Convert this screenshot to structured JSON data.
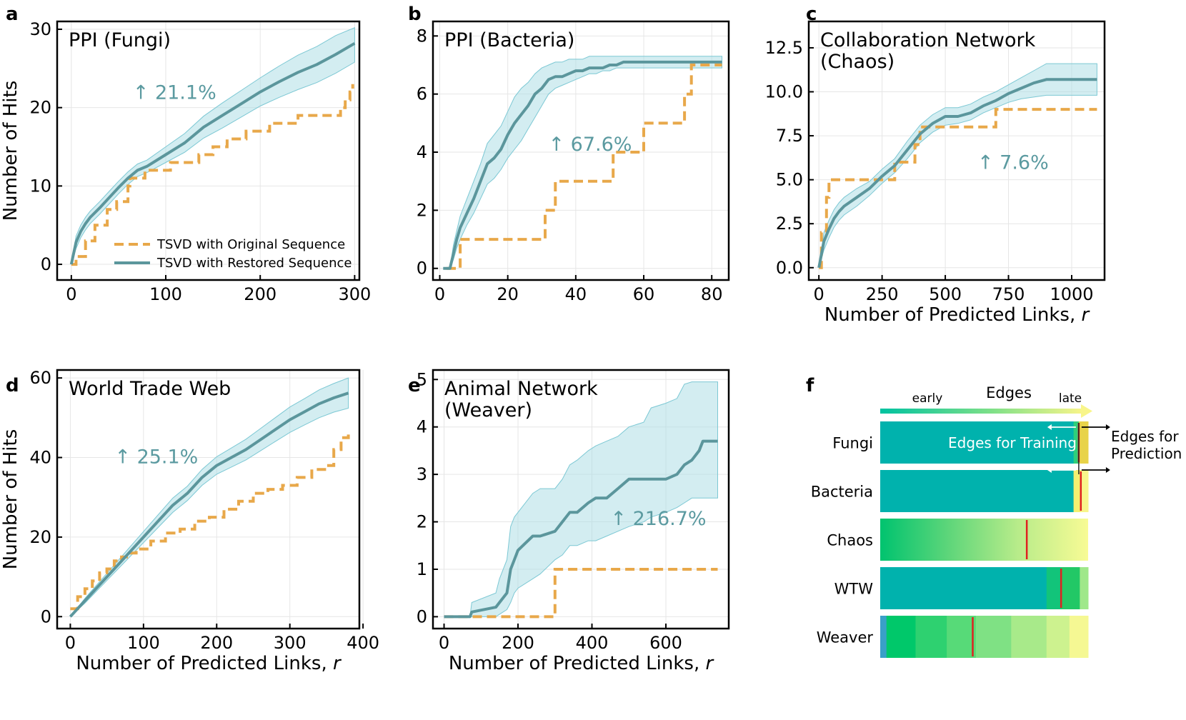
{
  "colors": {
    "restored": "#5b969c",
    "band": "#a8dce4",
    "original": "#e8a84a",
    "grid": "#e6e6e6",
    "teal_block": "#00b2ad",
    "red_marker": "#e02020",
    "yellow": "#f8f58a"
  },
  "legend": {
    "original": "TSVD with Original Sequence",
    "restored": "TSVD with Restored Sequence"
  },
  "chart_data": [
    {
      "type": "line",
      "panel": "a",
      "title": "PPI (Fungi)",
      "annotation": "↑ 21.1%",
      "xlabel": "",
      "ylabel": "Number of Hits",
      "xlim": [
        -15,
        305
      ],
      "ylim": [
        -2,
        31
      ],
      "xticks": [
        0,
        100,
        200,
        300
      ],
      "yticks": [
        0,
        10,
        20,
        30
      ],
      "ytick_labels": [
        "0",
        "10",
        "20",
        "30"
      ],
      "legend": true,
      "series": [
        {
          "name": "TSVD with Original Sequence",
          "style": "dashed-step",
          "x": [
            0,
            5,
            15,
            25,
            38,
            48,
            60,
            62,
            78,
            105,
            135,
            150,
            165,
            185,
            195,
            210,
            215,
            240,
            260,
            285,
            290,
            295,
            298
          ],
          "y": [
            0,
            1,
            3,
            5,
            7,
            8,
            10,
            11,
            12,
            13,
            14,
            15,
            16,
            17,
            17,
            18,
            18,
            19,
            19,
            20,
            21,
            22,
            23
          ]
        },
        {
          "name": "TSVD with Restored Sequence",
          "style": "solid",
          "x": [
            0,
            5,
            10,
            15,
            20,
            30,
            40,
            50,
            60,
            70,
            80,
            100,
            120,
            140,
            160,
            180,
            200,
            220,
            240,
            260,
            280,
            300
          ],
          "y": [
            0,
            2.8,
            4.2,
            5.2,
            6.0,
            7.2,
            8.5,
            9.8,
            11,
            12,
            12.5,
            14,
            15.5,
            17.5,
            19,
            20.5,
            22,
            23.3,
            24.5,
            25.5,
            26.8,
            28.2
          ],
          "band_lower": [
            0,
            2.0,
            3.4,
            4.4,
            5.2,
            6.4,
            7.7,
            9.0,
            10.2,
            11.2,
            11.7,
            13.0,
            14.3,
            16.1,
            17.4,
            18.8,
            20.2,
            21.3,
            22.3,
            23.2,
            24.4,
            25.8
          ],
          "band_upper": [
            0,
            3.6,
            5.0,
            6.0,
            6.8,
            8.0,
            9.3,
            10.6,
            11.8,
            12.8,
            13.3,
            15.0,
            16.7,
            18.9,
            20.6,
            22.2,
            23.8,
            25.3,
            26.7,
            27.8,
            29.2,
            30.2
          ]
        }
      ]
    },
    {
      "type": "line",
      "panel": "b",
      "title": "PPI (Bacteria)",
      "annotation": "↑ 67.6%",
      "xlabel": "",
      "ylabel": "",
      "xlim": [
        -2,
        85
      ],
      "ylim": [
        -0.4,
        8.5
      ],
      "xticks": [
        0,
        20,
        40,
        60,
        80
      ],
      "yticks": [
        0,
        2,
        4,
        6,
        8
      ],
      "ytick_labels": [
        "0",
        "2",
        "4",
        "6",
        "8"
      ],
      "legend": false,
      "series": [
        {
          "name": "TSVD with Original Sequence",
          "style": "dashed-step",
          "x": [
            2,
            6,
            28,
            31,
            34,
            48,
            51,
            56,
            60,
            72,
            74,
            83
          ],
          "y": [
            0,
            1,
            1,
            2,
            3,
            3,
            4,
            4,
            5,
            6,
            7,
            7
          ],
          "step": true
        },
        {
          "name": "TSVD with Restored Sequence",
          "style": "solid",
          "x": [
            1,
            3,
            4,
            5,
            6,
            8,
            10,
            12,
            14,
            16,
            18,
            20,
            22,
            24,
            26,
            28,
            30,
            32,
            34,
            36,
            38,
            40,
            42,
            44,
            46,
            48,
            50,
            52,
            54,
            56,
            60,
            65,
            70,
            75,
            80,
            83
          ],
          "y": [
            0,
            0,
            0.5,
            1.0,
            1.4,
            1.9,
            2.4,
            3.0,
            3.6,
            3.8,
            4.1,
            4.6,
            5.0,
            5.3,
            5.6,
            6.0,
            6.2,
            6.5,
            6.6,
            6.6,
            6.7,
            6.8,
            6.8,
            6.9,
            6.9,
            6.9,
            7.0,
            7.0,
            7.1,
            7.1,
            7.1,
            7.1,
            7.1,
            7.1,
            7.1,
            7.1
          ],
          "band_lower": [
            0,
            0,
            0.3,
            0.7,
            1.0,
            1.5,
            1.9,
            2.4,
            2.9,
            3.1,
            3.4,
            3.8,
            4.1,
            4.4,
            4.8,
            5.2,
            5.6,
            6.0,
            6.2,
            6.3,
            6.4,
            6.5,
            6.6,
            6.7,
            6.7,
            6.8,
            6.8,
            6.9,
            6.9,
            6.9,
            6.9,
            6.9,
            6.9,
            6.9,
            6.9,
            6.9
          ],
          "band_upper": [
            0,
            0,
            0.8,
            1.3,
            1.8,
            2.4,
            3.0,
            3.6,
            4.3,
            4.6,
            4.9,
            5.4,
            5.9,
            6.2,
            6.4,
            6.7,
            6.9,
            7.0,
            7.1,
            7.1,
            7.2,
            7.2,
            7.2,
            7.3,
            7.3,
            7.3,
            7.3,
            7.3,
            7.3,
            7.3,
            7.3,
            7.3,
            7.3,
            7.3,
            7.3,
            7.3
          ]
        }
      ]
    },
    {
      "type": "line",
      "panel": "c",
      "title": "Collaboration Network",
      "title2": "(Chaos)",
      "annotation": "↑ 7.6%",
      "xlabel": "Number of Predicted Links, r",
      "ylabel": "",
      "xlim": [
        -40,
        1130
      ],
      "ylim": [
        -0.7,
        14
      ],
      "xticks": [
        0,
        250,
        500,
        750,
        1000
      ],
      "yticks": [
        0,
        2.5,
        5,
        7.5,
        10,
        12.5
      ],
      "ytick_labels": [
        "0.0",
        "2.5",
        "5.0",
        "7.5",
        "10.0",
        "12.5"
      ],
      "legend": false,
      "series": [
        {
          "name": "TSVD with Original Sequence",
          "style": "dashed-step",
          "x": [
            0,
            10,
            30,
            40,
            250,
            300,
            330,
            380,
            400,
            680,
            700,
            1100
          ],
          "y": [
            0,
            2,
            4,
            5,
            5,
            6,
            6,
            7,
            8,
            8,
            9,
            9
          ],
          "step": true
        },
        {
          "name": "TSVD with Restored Sequence",
          "style": "solid",
          "x": [
            0,
            20,
            40,
            60,
            80,
            100,
            150,
            200,
            250,
            300,
            350,
            400,
            450,
            500,
            550,
            600,
            650,
            700,
            750,
            800,
            850,
            900,
            1000,
            1100
          ],
          "y": [
            0,
            1.5,
            2.2,
            2.8,
            3.2,
            3.5,
            4.0,
            4.5,
            5.2,
            5.8,
            6.7,
            7.6,
            8.2,
            8.6,
            8.6,
            8.8,
            9.2,
            9.5,
            9.9,
            10.2,
            10.5,
            10.7,
            10.7,
            10.7
          ],
          "band_lower": [
            0,
            1.0,
            1.7,
            2.3,
            2.7,
            3.0,
            3.5,
            4.1,
            4.8,
            5.4,
            6.2,
            7.1,
            7.7,
            8.1,
            8.2,
            8.4,
            8.8,
            9.1,
            9.4,
            9.6,
            9.7,
            9.8,
            9.8,
            9.8
          ],
          "band_upper": [
            0,
            2.0,
            2.7,
            3.3,
            3.7,
            4.0,
            4.5,
            4.9,
            5.6,
            6.2,
            7.2,
            8.1,
            8.7,
            9.1,
            9.1,
            9.3,
            9.7,
            10.0,
            10.4,
            10.8,
            11.2,
            11.6,
            11.6,
            11.6
          ]
        }
      ]
    },
    {
      "type": "line",
      "panel": "d",
      "title": "World Trade Web",
      "annotation": "↑ 25.1%",
      "xlabel": "Number of Predicted Links, r",
      "ylabel": "Number of Hits",
      "xlim": [
        -18,
        395
      ],
      "ylim": [
        -3,
        62
      ],
      "xticks": [
        0,
        100,
        200,
        300,
        400
      ],
      "yticks": [
        0,
        20,
        40,
        60
      ],
      "ytick_labels": [
        "0",
        "20",
        "40",
        "60"
      ],
      "legend": false,
      "series": [
        {
          "name": "TSVD with Original Sequence",
          "style": "dashed-step",
          "x": [
            0,
            10,
            20,
            30,
            40,
            50,
            60,
            70,
            80,
            90,
            110,
            130,
            150,
            170,
            190,
            210,
            230,
            250,
            270,
            290,
            310,
            330,
            350,
            360,
            370,
            380
          ],
          "y": [
            2,
            5,
            7,
            9,
            11,
            12,
            14,
            15,
            16,
            17,
            19,
            21,
            22,
            24,
            25,
            27,
            29,
            31,
            32,
            33,
            35,
            37,
            38,
            42,
            45,
            47
          ],
          "step": true
        },
        {
          "name": "TSVD with Restored Sequence",
          "style": "solid",
          "x": [
            0,
            20,
            40,
            60,
            80,
            100,
            120,
            140,
            160,
            180,
            200,
            220,
            240,
            260,
            280,
            300,
            320,
            340,
            360,
            380
          ],
          "y": [
            0,
            4,
            8,
            12,
            16,
            20,
            24,
            28,
            31,
            35,
            38,
            40,
            42,
            44.5,
            47,
            49.5,
            51.5,
            53.5,
            55,
            56.2
          ],
          "band_lower": [
            0,
            3.4,
            7.2,
            11.0,
            14.8,
            18.6,
            22.4,
            26.2,
            29.2,
            33.0,
            35.8,
            37.6,
            39.4,
            41.7,
            44.0,
            46.3,
            48.2,
            50.0,
            51.4,
            52.4
          ],
          "band_upper": [
            0,
            4.6,
            8.8,
            13.0,
            17.2,
            21.4,
            25.6,
            29.8,
            32.8,
            37.0,
            40.2,
            42.4,
            44.6,
            47.3,
            50.0,
            52.7,
            54.8,
            57.0,
            58.6,
            60.0
          ]
        }
      ]
    },
    {
      "type": "line",
      "panel": "e",
      "title": "Animal Network",
      "title2": "(Weaver)",
      "annotation": "↑ 216.7%",
      "xlabel": "Number of Predicted Links, r",
      "ylabel": "",
      "xlim": [
        -30,
        770
      ],
      "ylim": [
        -0.25,
        5.2
      ],
      "xticks": [
        0,
        200,
        400,
        600
      ],
      "yticks": [
        0,
        1,
        2,
        3,
        4,
        5
      ],
      "ytick_labels": [
        "0",
        "1",
        "2",
        "3",
        "4",
        "5"
      ],
      "legend": false,
      "series": [
        {
          "name": "TSVD with Original Sequence",
          "style": "dashed-step",
          "x": [
            0,
            80,
            90,
            290,
            300,
            740
          ],
          "y": [
            0,
            0,
            0,
            0,
            1,
            1
          ],
          "step": true
        },
        {
          "name": "TSVD with Restored Sequence",
          "style": "solid",
          "x": [
            0,
            70,
            75,
            140,
            150,
            170,
            180,
            190,
            200,
            240,
            260,
            300,
            320,
            340,
            360,
            390,
            410,
            440,
            470,
            500,
            540,
            560,
            600,
            630,
            650,
            670,
            690,
            700,
            740
          ],
          "y": [
            0,
            0,
            0.1,
            0.2,
            0.3,
            0.5,
            1.0,
            1.2,
            1.4,
            1.7,
            1.7,
            1.8,
            2.0,
            2.2,
            2.2,
            2.4,
            2.5,
            2.5,
            2.7,
            2.9,
            2.9,
            2.9,
            2.9,
            3.0,
            3.2,
            3.3,
            3.5,
            3.7,
            3.7
          ],
          "band_lower": [
            0,
            0,
            0,
            0,
            0.05,
            0.15,
            0.3,
            0.5,
            0.6,
            0.8,
            0.9,
            1.2,
            1.3,
            1.5,
            1.5,
            1.6,
            1.6,
            1.7,
            1.8,
            1.9,
            2.0,
            2.1,
            2.2,
            2.3,
            2.4,
            2.5,
            2.5,
            2.5,
            2.5
          ],
          "band_upper": [
            0,
            0,
            0.3,
            0.5,
            0.8,
            1.2,
            1.9,
            2.1,
            2.2,
            2.6,
            2.7,
            2.7,
            2.9,
            3.2,
            3.3,
            3.5,
            3.6,
            3.7,
            3.8,
            4.0,
            4.1,
            4.4,
            4.5,
            4.6,
            4.9,
            4.95,
            4.95,
            4.95,
            4.95
          ]
        }
      ]
    }
  ],
  "panel_f": {
    "letter": "f",
    "header": "Edges",
    "early": "early",
    "late": "late",
    "training_label": "Edges for Training",
    "prediction_label_1": "Edges for",
    "prediction_label_2": "Prediction",
    "rows": [
      {
        "name": "Fungi",
        "split": 0.955,
        "segments": [
          {
            "from": 0,
            "to": 0.93,
            "color": "#00b2ad"
          },
          {
            "from": 0.93,
            "to": 0.955,
            "color": "#2fcf7a"
          },
          {
            "from": 0.955,
            "to": 1.0,
            "color": "#e8d34a"
          }
        ]
      },
      {
        "name": "Bacteria",
        "split": 0.965,
        "segments": [
          {
            "from": 0,
            "to": 0.93,
            "color": "#00b2ad"
          },
          {
            "from": 0.93,
            "to": 0.965,
            "color": "#f4f070"
          },
          {
            "from": 0.965,
            "to": 1.0,
            "color": "#f8f58a"
          }
        ]
      },
      {
        "name": "Chaos",
        "split": 0.705,
        "gradient": [
          "#00c36f",
          "#5fd67a",
          "#b9ec8a",
          "#f8fb95"
        ]
      },
      {
        "name": "WTW",
        "split": 0.87,
        "segments": [
          {
            "from": 0,
            "to": 0.8,
            "color": "#00b2ad"
          },
          {
            "from": 0.8,
            "to": 0.87,
            "color": "#12c47a"
          },
          {
            "from": 0.87,
            "to": 0.96,
            "color": "#22c866"
          },
          {
            "from": 0.96,
            "to": 1.0,
            "color": "#9fe88a"
          }
        ]
      },
      {
        "name": "Weaver",
        "split": 0.445,
        "segments": [
          {
            "from": 0,
            "to": 0.03,
            "color": "#3aa0c8"
          },
          {
            "from": 0.03,
            "to": 0.17,
            "color": "#00c86a"
          },
          {
            "from": 0.17,
            "to": 0.32,
            "color": "#2ed170"
          },
          {
            "from": 0.32,
            "to": 0.46,
            "color": "#57da78"
          },
          {
            "from": 0.46,
            "to": 0.63,
            "color": "#7fe184"
          },
          {
            "from": 0.63,
            "to": 0.8,
            "color": "#a8ea8a"
          },
          {
            "from": 0.8,
            "to": 0.91,
            "color": "#cdf28f"
          },
          {
            "from": 0.91,
            "to": 1.0,
            "color": "#f5f893"
          }
        ]
      }
    ]
  }
}
